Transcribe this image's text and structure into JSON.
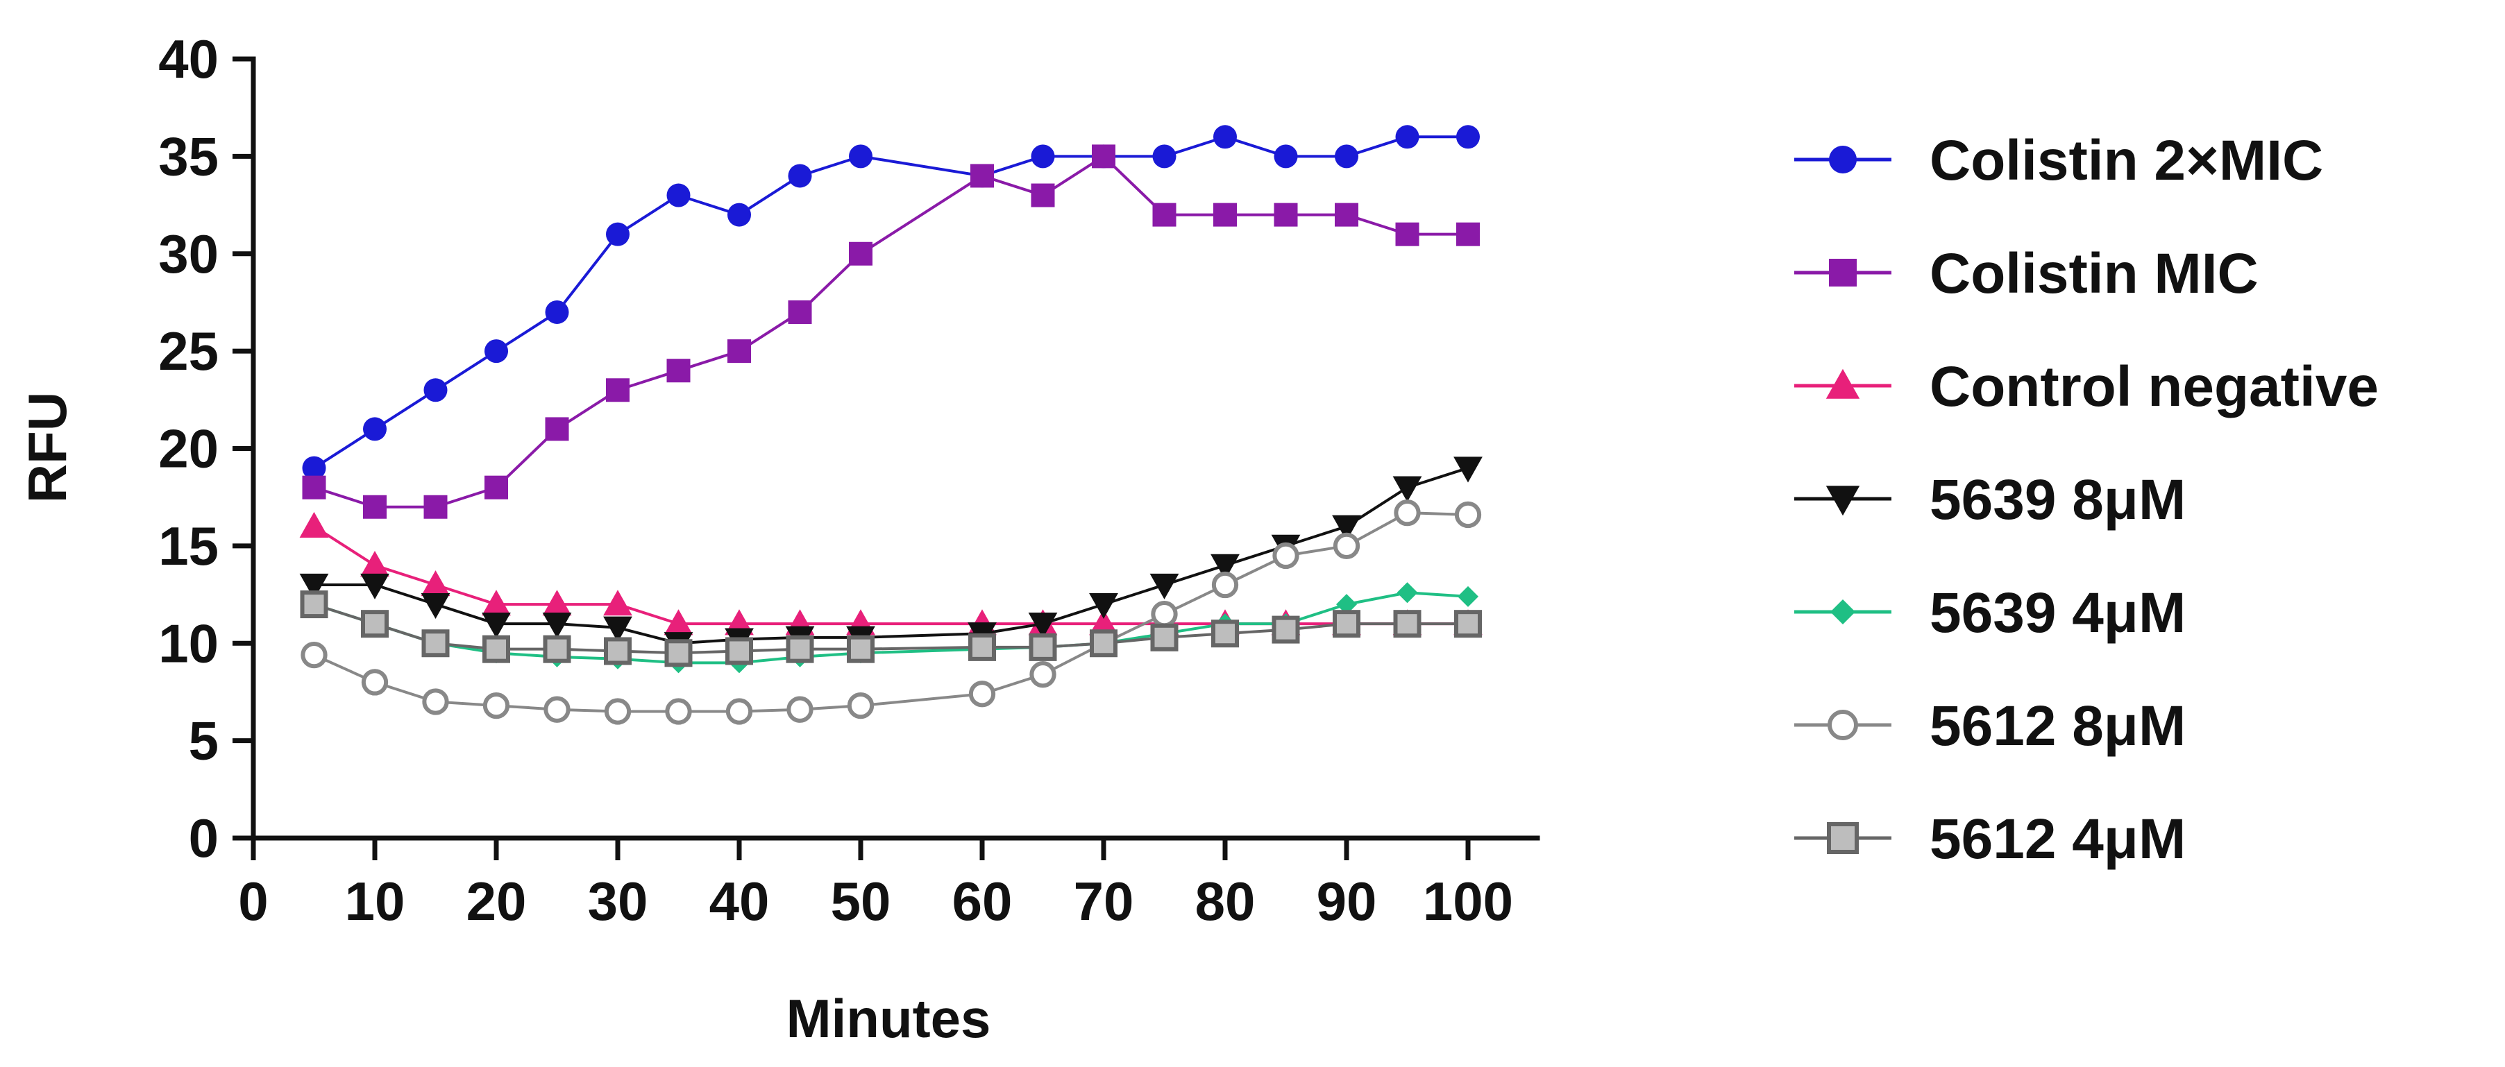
{
  "chart_data": {
    "type": "line",
    "title": "",
    "xlabel": "Minutes",
    "ylabel": "RFU",
    "xlim": [
      0,
      105
    ],
    "ylim": [
      0,
      40
    ],
    "x_ticks": [
      0,
      10,
      20,
      30,
      40,
      50,
      60,
      70,
      80,
      90,
      100
    ],
    "y_ticks": [
      0,
      5,
      10,
      15,
      20,
      25,
      30,
      35,
      40
    ],
    "grid": false,
    "legend_position": "right",
    "series": [
      {
        "name": "Colistin 2×MIC",
        "color": "#1a1ad6",
        "marker": "circle",
        "points": [
          [
            5,
            19
          ],
          [
            10,
            21
          ],
          [
            15,
            23
          ],
          [
            20,
            25
          ],
          [
            25,
            27
          ],
          [
            30,
            31
          ],
          [
            35,
            33
          ],
          [
            40,
            32
          ],
          [
            45,
            34
          ],
          [
            50,
            35
          ],
          [
            60,
            34
          ],
          [
            65,
            35
          ],
          [
            70,
            35
          ],
          [
            75,
            35
          ],
          [
            80,
            36
          ],
          [
            85,
            35
          ],
          [
            90,
            35
          ],
          [
            95,
            36
          ],
          [
            100,
            36
          ]
        ]
      },
      {
        "name": "Colistin MIC",
        "color": "#8a1aa8",
        "marker": "square",
        "points": [
          [
            5,
            18
          ],
          [
            10,
            17
          ],
          [
            15,
            17
          ],
          [
            20,
            18
          ],
          [
            25,
            21
          ],
          [
            30,
            23
          ],
          [
            35,
            24
          ],
          [
            40,
            25
          ],
          [
            45,
            27
          ],
          [
            50,
            30
          ],
          [
            60,
            34
          ],
          [
            65,
            33
          ],
          [
            70,
            35
          ],
          [
            75,
            32
          ],
          [
            80,
            32
          ],
          [
            85,
            32
          ],
          [
            90,
            32
          ],
          [
            95,
            31
          ],
          [
            100,
            31
          ]
        ]
      },
      {
        "name": "Control negative",
        "color": "#e8207a",
        "marker": "triangle-up",
        "points": [
          [
            5,
            16
          ],
          [
            10,
            14
          ],
          [
            15,
            13
          ],
          [
            20,
            12
          ],
          [
            25,
            12
          ],
          [
            30,
            12
          ],
          [
            35,
            11
          ],
          [
            40,
            11
          ],
          [
            45,
            11
          ],
          [
            50,
            11
          ],
          [
            60,
            11
          ],
          [
            65,
            11
          ],
          [
            70,
            11
          ],
          [
            75,
            11
          ],
          [
            80,
            11
          ],
          [
            85,
            11
          ],
          [
            90,
            11
          ],
          [
            95,
            11
          ],
          [
            100,
            11
          ]
        ]
      },
      {
        "name": "5639 8μM",
        "color": "#111111",
        "marker": "triangle-down",
        "points": [
          [
            5,
            13
          ],
          [
            10,
            13
          ],
          [
            15,
            12
          ],
          [
            20,
            11
          ],
          [
            25,
            11
          ],
          [
            30,
            10.8
          ],
          [
            35,
            10
          ],
          [
            40,
            10.2
          ],
          [
            45,
            10.3
          ],
          [
            50,
            10.3
          ],
          [
            60,
            10.5
          ],
          [
            65,
            11
          ],
          [
            70,
            12
          ],
          [
            75,
            13
          ],
          [
            80,
            14
          ],
          [
            85,
            15
          ],
          [
            90,
            16
          ],
          [
            95,
            18
          ],
          [
            100,
            19
          ]
        ]
      },
      {
        "name": "5639 4μM",
        "color": "#1fbf84",
        "marker": "diamond",
        "points": [
          [
            5,
            12
          ],
          [
            10,
            11
          ],
          [
            15,
            10
          ],
          [
            20,
            9.5
          ],
          [
            25,
            9.3
          ],
          [
            30,
            9.2
          ],
          [
            35,
            9
          ],
          [
            40,
            9
          ],
          [
            45,
            9.3
          ],
          [
            50,
            9.5
          ],
          [
            60,
            9.7
          ],
          [
            65,
            9.8
          ],
          [
            70,
            10
          ],
          [
            75,
            10.5
          ],
          [
            80,
            11
          ],
          [
            85,
            11
          ],
          [
            90,
            12
          ],
          [
            95,
            12.6
          ],
          [
            100,
            12.4
          ]
        ]
      },
      {
        "name": "5612 8μM",
        "color": "#888888",
        "marker": "circle-open",
        "points": [
          [
            5,
            9.4
          ],
          [
            10,
            8
          ],
          [
            15,
            7
          ],
          [
            20,
            6.8
          ],
          [
            25,
            6.6
          ],
          [
            30,
            6.5
          ],
          [
            35,
            6.5
          ],
          [
            40,
            6.5
          ],
          [
            45,
            6.6
          ],
          [
            50,
            6.8
          ],
          [
            60,
            7.4
          ],
          [
            65,
            8.4
          ],
          [
            70,
            10
          ],
          [
            75,
            11.5
          ],
          [
            80,
            13
          ],
          [
            85,
            14.5
          ],
          [
            90,
            15
          ],
          [
            95,
            16.7
          ],
          [
            100,
            16.6
          ]
        ]
      },
      {
        "name": "5612 4μM",
        "color": "#666666",
        "marker": "square-open",
        "points": [
          [
            5,
            12
          ],
          [
            10,
            11
          ],
          [
            15,
            10
          ],
          [
            20,
            9.7
          ],
          [
            25,
            9.7
          ],
          [
            30,
            9.6
          ],
          [
            35,
            9.5
          ],
          [
            40,
            9.6
          ],
          [
            45,
            9.7
          ],
          [
            50,
            9.7
          ],
          [
            60,
            9.8
          ],
          [
            65,
            9.8
          ],
          [
            70,
            10
          ],
          [
            75,
            10.3
          ],
          [
            80,
            10.5
          ],
          [
            85,
            10.7
          ],
          [
            90,
            11
          ],
          [
            95,
            11
          ],
          [
            100,
            11
          ]
        ]
      }
    ]
  }
}
